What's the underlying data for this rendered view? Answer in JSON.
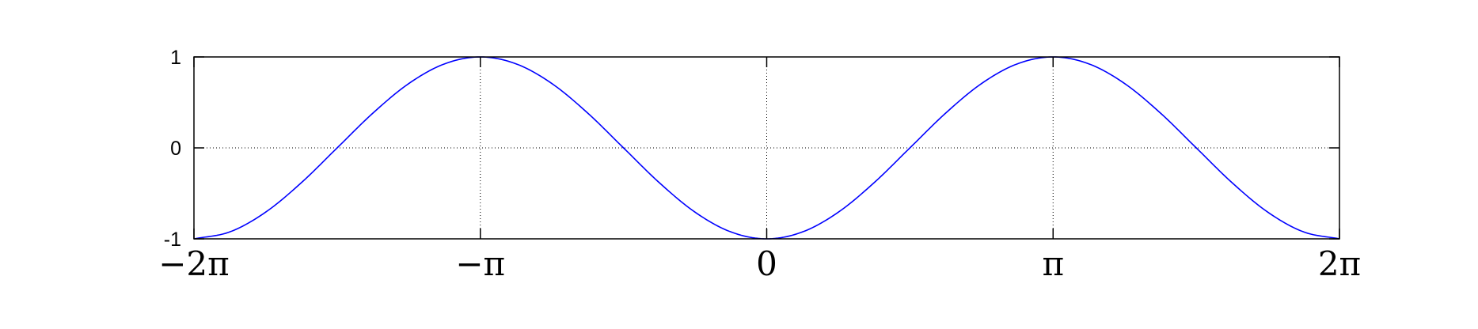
{
  "chart_data": {
    "type": "line",
    "title": "",
    "xlabel": "",
    "ylabel": "",
    "xlim": [
      -6.283185307,
      6.283185307
    ],
    "ylim": [
      -1,
      1
    ],
    "grid": true,
    "grid_style": "dotted",
    "x_ticks": [
      {
        "value": -6.283185307,
        "label": "−2π"
      },
      {
        "value": -3.141592654,
        "label": "−π"
      },
      {
        "value": 0,
        "label": "0"
      },
      {
        "value": 3.141592654,
        "label": "π"
      },
      {
        "value": 6.283185307,
        "label": "2π"
      }
    ],
    "y_ticks": [
      {
        "value": -1,
        "label": "-1"
      },
      {
        "value": 0,
        "label": "0"
      },
      {
        "value": 1,
        "label": "1"
      }
    ],
    "series": [
      {
        "color": "#0000ff",
        "x": [
          -6.2832,
          -5.8905,
          -5.4978,
          -5.1051,
          -4.7124,
          -4.3197,
          -3.927,
          -3.5343,
          -3.1416,
          -2.7489,
          -2.3562,
          -1.9635,
          -1.5708,
          -1.1781,
          -0.7854,
          -0.3927,
          0.0,
          0.3927,
          0.7854,
          1.1781,
          1.5708,
          1.9635,
          2.3562,
          2.7489,
          3.1416,
          3.5343,
          3.927,
          4.3197,
          4.7124,
          5.1051,
          5.4978,
          5.8905,
          6.2832
        ],
        "y": [
          -1.0,
          -0.9239,
          -0.7071,
          -0.3827,
          0.0,
          0.3827,
          0.7071,
          0.9239,
          1.0,
          0.9239,
          0.7071,
          0.3827,
          0.0,
          -0.3827,
          -0.7071,
          -0.9239,
          -1.0,
          -0.9239,
          -0.7071,
          -0.3827,
          0.0,
          0.3827,
          0.7071,
          0.9239,
          1.0,
          0.9239,
          0.7071,
          0.3827,
          0.0,
          -0.3827,
          -0.7071,
          -0.9239,
          -1.0
        ]
      }
    ]
  }
}
